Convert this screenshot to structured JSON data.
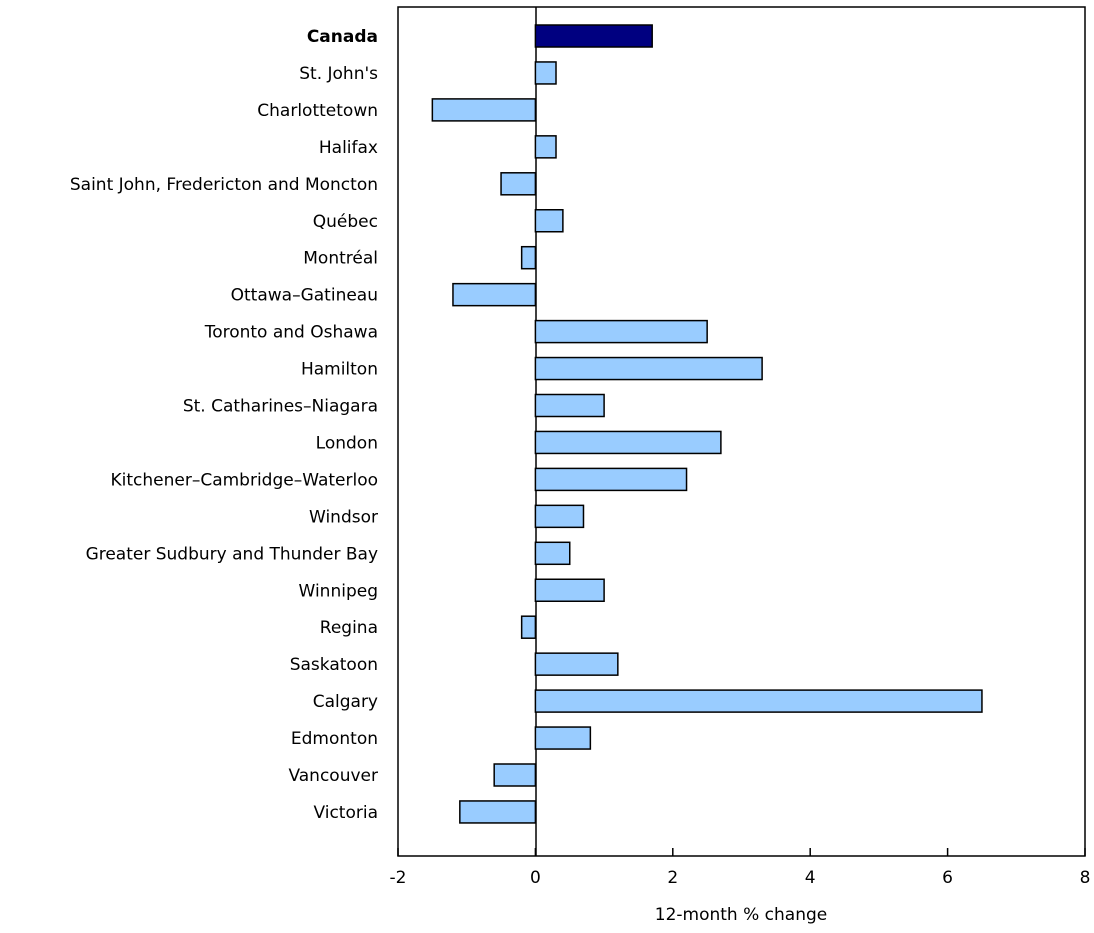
{
  "chart_data": {
    "type": "bar",
    "orientation": "horizontal",
    "title": "",
    "xlabel": "12-month % change",
    "ylabel": "",
    "xlim": [
      -2,
      8
    ],
    "xticks": [
      -2,
      0,
      2,
      4,
      6,
      8
    ],
    "grid": false,
    "legend": "none",
    "highlight_category": "Canada",
    "colors": {
      "bar": "#99ccff",
      "highlight": "#000080",
      "stroke": "#000000"
    },
    "categories": [
      "Canada",
      "St. John's",
      "Charlottetown",
      "Halifax",
      "Saint John, Fredericton and Moncton",
      "Québec",
      "Montréal",
      "Ottawa–Gatineau",
      "Toronto and Oshawa",
      "Hamilton",
      "St. Catharines–Niagara",
      "London",
      "Kitchener–Cambridge–Waterloo",
      "Windsor",
      "Greater Sudbury and Thunder Bay",
      "Winnipeg",
      "Regina",
      "Saskatoon",
      "Calgary",
      "Edmonton",
      "Vancouver",
      "Victoria"
    ],
    "values": [
      1.7,
      0.3,
      -1.5,
      0.3,
      -0.5,
      0.4,
      -0.2,
      -1.2,
      2.5,
      3.3,
      1.0,
      2.7,
      2.2,
      0.7,
      0.5,
      1.0,
      -0.2,
      1.2,
      6.5,
      0.8,
      -0.6,
      -1.1
    ]
  }
}
